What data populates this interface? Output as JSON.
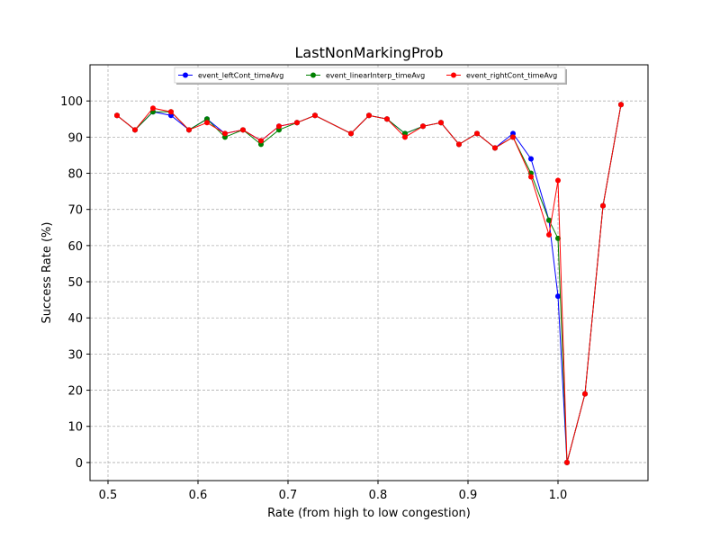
{
  "chart_data": {
    "type": "line",
    "title": "LastNonMarkingProb",
    "xlabel": "Rate (from high to low congestion)",
    "ylabel": "Success Rate (%)",
    "xlim": [
      0.48,
      1.1
    ],
    "ylim": [
      -5,
      110
    ],
    "xticks": [
      0.5,
      0.6,
      0.7,
      0.8,
      0.9,
      1.0
    ],
    "xtick_labels": [
      "0.5",
      "0.6",
      "0.7",
      "0.8",
      "0.9",
      "1.0"
    ],
    "yticks": [
      0,
      10,
      20,
      30,
      40,
      50,
      60,
      70,
      80,
      90,
      100
    ],
    "ytick_labels": [
      "0",
      "10",
      "20",
      "30",
      "40",
      "50",
      "60",
      "70",
      "80",
      "90",
      "100"
    ],
    "grid": true,
    "legend_position": "upper-center",
    "x": [
      0.51,
      0.53,
      0.55,
      0.57,
      0.59,
      0.61,
      0.63,
      0.65,
      0.67,
      0.69,
      0.71,
      0.73,
      0.77,
      0.79,
      0.81,
      0.83,
      0.85,
      0.87,
      0.89,
      0.91,
      0.93,
      0.95,
      0.97,
      0.99,
      1.0,
      1.01,
      1.03,
      1.05,
      1.07
    ],
    "series": [
      {
        "name": "event_leftCont_timeAvg",
        "color": "#0000ff",
        "values": [
          96,
          92,
          97,
          96,
          92,
          95,
          91,
          92,
          89,
          93,
          94,
          96,
          91,
          96,
          95,
          91,
          93,
          94,
          88,
          91,
          87,
          91,
          84,
          67,
          46,
          0,
          19,
          71,
          99
        ]
      },
      {
        "name": "event_linearInterp_timeAvg",
        "color": "#008000",
        "values": [
          96,
          92,
          97,
          97,
          92,
          95,
          90,
          92,
          88,
          92,
          94,
          96,
          91,
          96,
          95,
          91,
          93,
          94,
          88,
          91,
          87,
          90,
          80,
          67,
          62,
          0,
          19,
          71,
          99
        ]
      },
      {
        "name": "event_rightCont_timeAvg",
        "color": "#ff0000",
        "values": [
          96,
          92,
          98,
          97,
          92,
          94,
          91,
          92,
          89,
          93,
          94,
          96,
          91,
          96,
          95,
          90,
          93,
          94,
          88,
          91,
          87,
          90,
          79,
          63,
          78,
          0,
          19,
          71,
          99
        ]
      }
    ]
  }
}
